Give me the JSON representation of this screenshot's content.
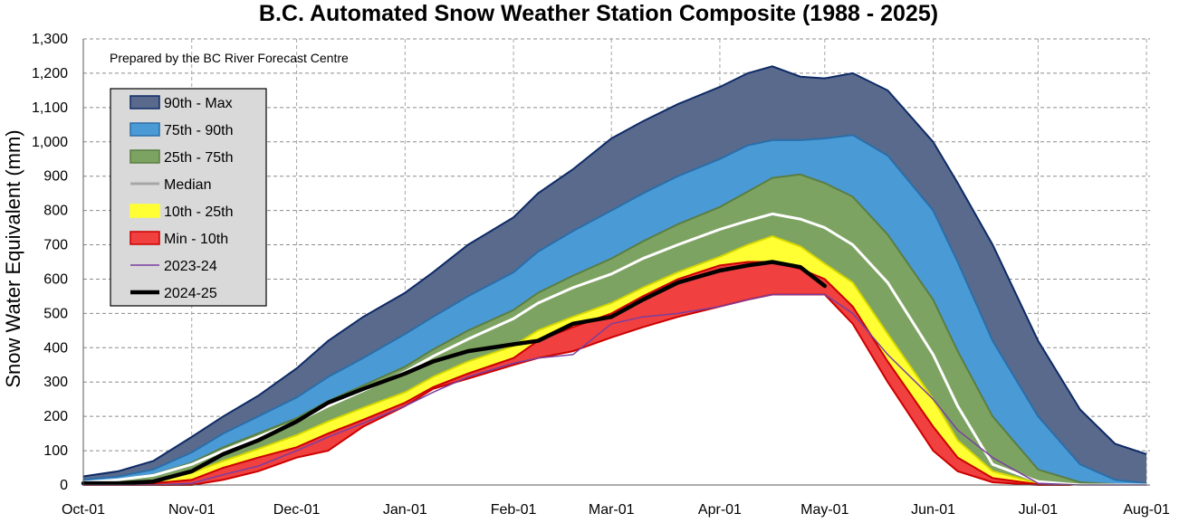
{
  "chart_data": {
    "type": "area",
    "title": "B.C. Automated Snow Weather Station Composite (1988 - 2025)",
    "ylabel": "Snow Water Equivalent (mm)",
    "xlabel": "",
    "note": "Prepared by the BC River Forecast Centre",
    "ylim": [
      0,
      1300
    ],
    "xlim": [
      0,
      305
    ],
    "grid": true,
    "legend_position": "upper-left",
    "x_ticks": [
      {
        "label": "Oct-01",
        "day": 0
      },
      {
        "label": "Nov-01",
        "day": 31
      },
      {
        "label": "Dec-01",
        "day": 61
      },
      {
        "label": "Jan-01",
        "day": 92
      },
      {
        "label": "Feb-01",
        "day": 123
      },
      {
        "label": "Mar-01",
        "day": 151
      },
      {
        "label": "Apr-01",
        "day": 182
      },
      {
        "label": "May-01",
        "day": 212
      },
      {
        "label": "Jun-01",
        "day": 243
      },
      {
        "label": "Jul-01",
        "day": 273
      },
      {
        "label": "Aug-01",
        "day": 304
      }
    ],
    "y_ticks": [
      {
        "label": "0",
        "value": 0
      },
      {
        "label": "100",
        "value": 100
      },
      {
        "label": "200",
        "value": 200
      },
      {
        "label": "300",
        "value": 300
      },
      {
        "label": "400",
        "value": 400
      },
      {
        "label": "500",
        "value": 500
      },
      {
        "label": "600",
        "value": 600
      },
      {
        "label": "700",
        "value": 700
      },
      {
        "label": "800",
        "value": 800
      },
      {
        "label": "900",
        "value": 900
      },
      {
        "label": "1,000",
        "value": 1000
      },
      {
        "label": "1,100",
        "value": 1100
      },
      {
        "label": "1,200",
        "value": 1200
      },
      {
        "label": "1,300",
        "value": 1300
      }
    ],
    "days": [
      0,
      10,
      20,
      31,
      40,
      50,
      61,
      70,
      80,
      92,
      100,
      110,
      123,
      130,
      140,
      151,
      160,
      170,
      182,
      190,
      197,
      205,
      212,
      220,
      230,
      243,
      250,
      260,
      273,
      285,
      295,
      304
    ],
    "bands": [
      {
        "name": "90th - Max",
        "color": "#5a6a8c",
        "edge": "#0d2a66",
        "values": [
          25,
          40,
          70,
          140,
          200,
          260,
          340,
          420,
          490,
          560,
          620,
          700,
          780,
          850,
          920,
          1010,
          1060,
          1110,
          1160,
          1200,
          1220,
          1190,
          1185,
          1200,
          1150,
          1000,
          880,
          700,
          420,
          220,
          120,
          90
        ]
      },
      {
        "name": "75th - 90th",
        "color": "#4a9ad6",
        "edge": "#2a6ea8",
        "values": [
          15,
          25,
          45,
          95,
          150,
          200,
          255,
          315,
          370,
          440,
          490,
          550,
          620,
          680,
          740,
          800,
          850,
          900,
          950,
          990,
          1005,
          1005,
          1010,
          1020,
          960,
          800,
          650,
          420,
          200,
          60,
          15,
          5
        ]
      },
      {
        "name": "25th - 75th",
        "color": "#7da362",
        "edge": "#5a7e42",
        "values": [
          8,
          15,
          30,
          65,
          110,
          150,
          195,
          245,
          290,
          345,
          395,
          450,
          510,
          560,
          610,
          660,
          710,
          760,
          810,
          855,
          895,
          905,
          880,
          840,
          730,
          540,
          390,
          200,
          45,
          8,
          2,
          0
        ]
      },
      {
        "name": "10th - 25th",
        "color": "#ffff33",
        "edge": "#d8d800",
        "values": [
          3,
          6,
          12,
          35,
          70,
          105,
          145,
          185,
          225,
          270,
          315,
          360,
          405,
          450,
          490,
          530,
          575,
          620,
          665,
          700,
          725,
          695,
          645,
          590,
          440,
          250,
          130,
          40,
          5,
          0,
          0,
          0
        ]
      },
      {
        "name": "Min - 10th",
        "color": "#f04040",
        "edge": "#cc0000",
        "values": [
          0,
          2,
          5,
          15,
          50,
          80,
          110,
          150,
          190,
          240,
          285,
          325,
          370,
          420,
          460,
          500,
          550,
          600,
          640,
          650,
          650,
          630,
          600,
          520,
          360,
          170,
          80,
          20,
          2,
          0,
          0,
          0
        ]
      },
      {
        "name": "min",
        "color": "#ffffff",
        "edge": "#cc0000",
        "values": [
          0,
          0,
          0,
          0,
          15,
          40,
          80,
          100,
          170,
          230,
          280,
          310,
          350,
          370,
          390,
          430,
          460,
          490,
          520,
          540,
          555,
          555,
          555,
          470,
          300,
          100,
          40,
          8,
          0,
          0,
          0,
          0
        ]
      }
    ],
    "series": [
      {
        "name": "Median",
        "color": "#ffffff",
        "width": 3,
        "values": [
          8,
          15,
          28,
          60,
          100,
          140,
          185,
          230,
          275,
          330,
          375,
          425,
          485,
          530,
          575,
          615,
          660,
          700,
          745,
          770,
          790,
          775,
          750,
          700,
          590,
          380,
          230,
          60,
          10,
          0,
          0,
          0
        ]
      },
      {
        "name": "2023-24",
        "color": "#7a3fa0",
        "width": 1.5,
        "values": [
          0,
          0,
          0,
          5,
          30,
          55,
          100,
          140,
          180,
          230,
          270,
          315,
          355,
          370,
          380,
          470,
          490,
          500,
          520,
          540,
          555,
          555,
          555,
          500,
          380,
          250,
          160,
          80,
          5,
          0,
          0,
          0
        ]
      },
      {
        "name": "2024-25",
        "color": "#000000",
        "width": 4.5,
        "values": [
          5,
          5,
          10,
          40,
          90,
          130,
          185,
          240,
          280,
          325,
          360,
          390,
          410,
          420,
          470,
          490,
          540,
          590,
          625,
          640,
          650,
          635,
          580
        ]
      }
    ],
    "legend": [
      {
        "label": "90th - Max",
        "kind": "box",
        "color": "#5a6a8c",
        "edge": "#0d2a66"
      },
      {
        "label": "75th - 90th",
        "kind": "box",
        "color": "#4a9ad6",
        "edge": "#2a6ea8"
      },
      {
        "label": "25th - 75th",
        "kind": "box",
        "color": "#7da362",
        "edge": "#5a7e42"
      },
      {
        "label": "Median",
        "kind": "line",
        "color": "#a6a6a6",
        "width": 3
      },
      {
        "label": "10th - 25th",
        "kind": "box",
        "color": "#ffff33",
        "edge": "#ffff33"
      },
      {
        "label": "Min - 10th",
        "kind": "box",
        "color": "#f04040",
        "edge": "#cc0000"
      },
      {
        "label": "2023-24",
        "kind": "line",
        "color": "#7a3fa0",
        "width": 1.5
      },
      {
        "label": "2024-25",
        "kind": "line",
        "color": "#000000",
        "width": 4.5
      }
    ]
  }
}
